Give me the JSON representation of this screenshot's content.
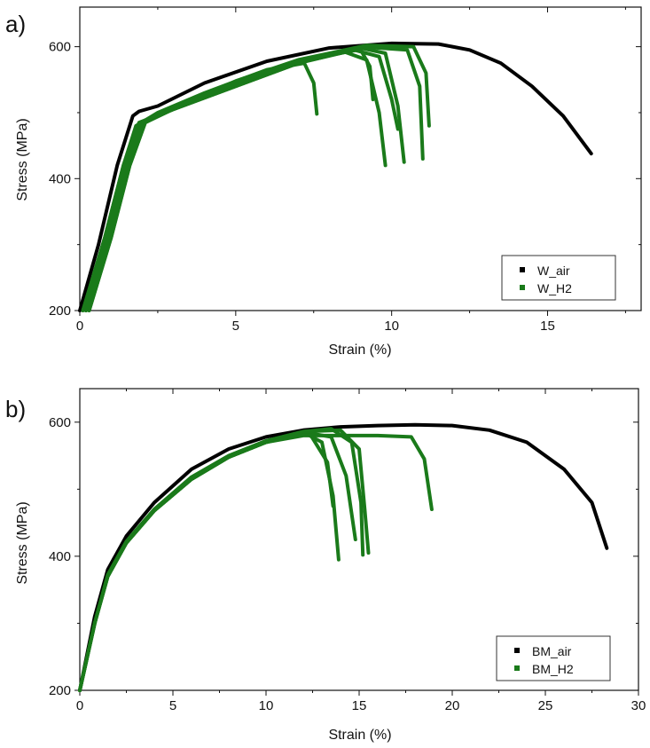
{
  "panels": [
    {
      "label": "a)",
      "chart_data": {
        "type": "line",
        "xlabel": "Strain (%)",
        "ylabel": "Stress (MPa)",
        "xlim": [
          0,
          18
        ],
        "ylim": [
          200,
          660
        ],
        "xticks": [
          0,
          5,
          10,
          15
        ],
        "yticks": [
          200,
          400,
          600
        ],
        "grid": false,
        "legend_position": "bottom-right",
        "series": [
          {
            "name": "W_air",
            "color": "#000000",
            "curves": [
              {
                "x": [
                  0,
                  0.6,
                  1.2,
                  1.7,
                  1.9,
                  2.5,
                  4,
                  6,
                  8,
                  10,
                  11.5,
                  12.5,
                  13.5,
                  14.5,
                  15.5,
                  16.4
                ],
                "y": [
                  200,
                  300,
                  420,
                  495,
                  502,
                  510,
                  545,
                  578,
                  598,
                  605,
                  604,
                  595,
                  575,
                  540,
                  495,
                  438
                ]
              }
            ]
          },
          {
            "name": "W_H2",
            "color": "#1a7a1a",
            "curves": [
              {
                "x": [
                  0.1,
                  0.8,
                  1.4,
                  1.8,
                  2.5,
                  4,
                  6,
                  7.2,
                  7.5,
                  7.6
                ],
                "y": [
                  200,
                  310,
                  420,
                  480,
                  500,
                  530,
                  565,
                  575,
                  545,
                  498
                ]
              },
              {
                "x": [
                  0.2,
                  0.9,
                  1.5,
                  2,
                  3,
                  5,
                  7,
                  8.5,
                  9.2,
                  9.6,
                  9.8
                ],
                "y": [
                  200,
                  310,
                  420,
                  485,
                  505,
                  540,
                  575,
                  592,
                  580,
                  500,
                  420
                ]
              },
              {
                "x": [
                  0.2,
                  0.9,
                  1.5,
                  2,
                  3,
                  5,
                  7,
                  8.8,
                  9.6,
                  10,
                  10.2
                ],
                "y": [
                  200,
                  310,
                  420,
                  485,
                  505,
                  540,
                  575,
                  595,
                  585,
                  520,
                  475
                ]
              },
              {
                "x": [
                  0.3,
                  1,
                  1.6,
                  2.1,
                  3.2,
                  5,
                  7,
                  9,
                  9.8,
                  10.2,
                  10.4
                ],
                "y": [
                  200,
                  310,
                  420,
                  485,
                  510,
                  545,
                  578,
                  598,
                  590,
                  510,
                  425
                ]
              },
              {
                "x": [
                  0.3,
                  1,
                  1.6,
                  2.1,
                  3.2,
                  5,
                  7,
                  9,
                  9.3,
                  9.4
                ],
                "y": [
                  200,
                  310,
                  420,
                  485,
                  510,
                  545,
                  578,
                  596,
                  570,
                  520
                ]
              },
              {
                "x": [
                  0.1,
                  0.8,
                  1.4,
                  1.9,
                  3,
                  5,
                  7,
                  9,
                  10.5,
                  10.9,
                  11
                ],
                "y": [
                  200,
                  310,
                  420,
                  485,
                  505,
                  545,
                  578,
                  600,
                  595,
                  540,
                  430
                ]
              },
              {
                "x": [
                  0.2,
                  0.9,
                  1.5,
                  2,
                  3.1,
                  5,
                  7,
                  9.2,
                  10.7,
                  11.1,
                  11.2
                ],
                "y": [
                  200,
                  310,
                  420,
                  485,
                  508,
                  548,
                  580,
                  602,
                  600,
                  560,
                  480
                ]
              }
            ]
          }
        ]
      }
    },
    {
      "label": "b)",
      "chart_data": {
        "type": "line",
        "xlabel": "Strain (%)",
        "ylabel": "Stress (MPa)",
        "xlim": [
          0,
          30
        ],
        "ylim": [
          200,
          650
        ],
        "xticks": [
          0,
          5,
          10,
          15,
          20,
          25,
          30
        ],
        "yticks": [
          200,
          400,
          600
        ],
        "grid": false,
        "legend_position": "bottom-right",
        "series": [
          {
            "name": "BM_air",
            "color": "#000000",
            "curves": [
              {
                "x": [
                  0,
                  0.8,
                  1.5,
                  2.5,
                  4,
                  6,
                  8,
                  10,
                  12,
                  14,
                  16,
                  18,
                  20,
                  22,
                  24,
                  26,
                  27.5,
                  28.3
                ],
                "y": [
                  200,
                  310,
                  380,
                  430,
                  480,
                  530,
                  560,
                  578,
                  588,
                  593,
                  595,
                  596,
                  595,
                  588,
                  570,
                  530,
                  480,
                  412
                ]
              }
            ]
          },
          {
            "name": "BM_H2",
            "color": "#1a7a1a",
            "curves": [
              {
                "x": [
                  0,
                  0.8,
                  1.5,
                  2.5,
                  4,
                  6,
                  8,
                  10,
                  12,
                  13,
                  13.6,
                  13.9
                ],
                "y": [
                  200,
                  300,
                  370,
                  420,
                  468,
                  515,
                  548,
                  570,
                  585,
                  570,
                  490,
                  395
                ]
              },
              {
                "x": [
                  0,
                  0.8,
                  1.5,
                  2.5,
                  4,
                  6,
                  8,
                  10,
                  12,
                  13.5,
                  14.3,
                  14.8
                ],
                "y": [
                  200,
                  300,
                  370,
                  420,
                  468,
                  515,
                  548,
                  570,
                  585,
                  578,
                  520,
                  425
                ]
              },
              {
                "x": [
                  0,
                  0.8,
                  1.5,
                  2.5,
                  4,
                  6,
                  8,
                  10,
                  12.3,
                  13.3,
                  13.6
                ],
                "y": [
                  200,
                  300,
                  370,
                  420,
                  468,
                  515,
                  548,
                  570,
                  585,
                  540,
                  475
                ]
              },
              {
                "x": [
                  0,
                  0.8,
                  1.5,
                  2.5,
                  4,
                  6,
                  8,
                  10,
                  12,
                  14,
                  15,
                  15.3,
                  15.5
                ],
                "y": [
                  200,
                  300,
                  372,
                  422,
                  470,
                  518,
                  550,
                  572,
                  586,
                  588,
                  560,
                  470,
                  405
                ]
              },
              {
                "x": [
                  0,
                  0.8,
                  1.5,
                  2.5,
                  4,
                  6,
                  8,
                  10,
                  12,
                  13.5,
                  14.6,
                  15.1,
                  15.2
                ],
                "y": [
                  200,
                  300,
                  372,
                  422,
                  470,
                  518,
                  550,
                  572,
                  586,
                  590,
                  570,
                  480,
                  402
                ]
              },
              {
                "x": [
                  0,
                  0.8,
                  1.5,
                  2.5,
                  4,
                  6,
                  8,
                  10,
                  12,
                  14,
                  16,
                  17.8,
                  18.5,
                  18.9
                ],
                "y": [
                  200,
                  300,
                  370,
                  420,
                  468,
                  515,
                  548,
                  570,
                  580,
                  580,
                  580,
                  578,
                  545,
                  470
                ]
              }
            ]
          }
        ]
      }
    }
  ]
}
